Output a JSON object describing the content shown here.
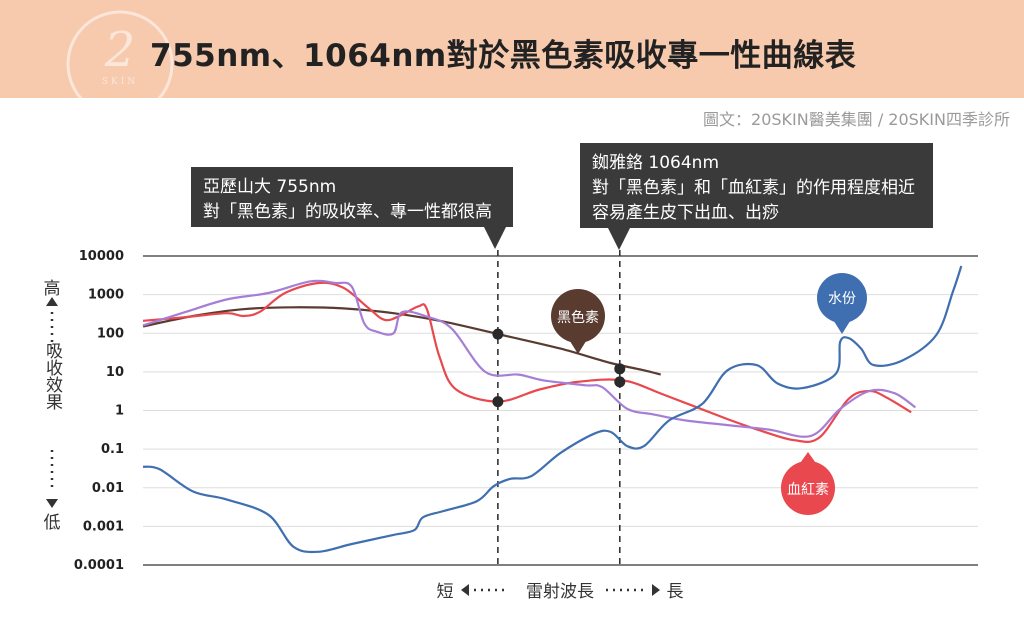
{
  "title": "755nm、1064nm對於黑色素吸收專一性曲線表",
  "logo": {
    "text": "2",
    "sub": "SKIN"
  },
  "credit": "圖文：20SKIN醫美集團 / 20SKIN四季診所",
  "callouts": {
    "alexandrite": {
      "line1": "亞歷山大 755nm",
      "line2": "對「黑色素」的吸收率、專一性都很高"
    },
    "ndyag": {
      "line1": "銣雅鉻 1064nm",
      "line2": "對「黑色素」和「血紅素」的作用程度相近",
      "line3": "容易產生皮下出血、出痧"
    }
  },
  "colors": {
    "melanin": "#5a3b30",
    "hemoglobin": "#e8484e",
    "water": "#3f6fb0",
    "unlabeled": "#a67ed6",
    "callout": "#3a3a3a",
    "header": "#f7c9ad"
  },
  "chart_data": {
    "type": "line",
    "y_scale": "log",
    "ylim": [
      0.0001,
      10000
    ],
    "yticks": [
      "10000",
      "1000",
      "100",
      "10",
      "1",
      "0.1",
      "0.01",
      "0.001",
      "0.0001"
    ],
    "ylabel": {
      "high": "高",
      "text": "吸收效果",
      "low": "低"
    },
    "xlabel": {
      "short": "短",
      "text": "雷射波長",
      "long": "長"
    },
    "markers": [
      {
        "label": "755nm"
      },
      {
        "label": "1064nm"
      }
    ],
    "series": [
      {
        "name": "黑色素",
        "color": "#5a3b30",
        "points": [
          [
            0.0,
            150
          ],
          [
            0.06,
            280
          ],
          [
            0.12,
            420
          ],
          [
            0.18,
            470
          ],
          [
            0.24,
            440
          ],
          [
            0.3,
            330
          ],
          [
            0.36,
            200
          ],
          [
            0.43,
            90
          ],
          [
            0.5,
            40
          ],
          [
            0.56,
            17
          ],
          [
            0.6,
            11
          ],
          [
            0.62,
            8.5
          ]
        ]
      },
      {
        "name": "血紅素",
        "color": "#e8484e",
        "points": [
          [
            0.0,
            210
          ],
          [
            0.05,
            260
          ],
          [
            0.1,
            330
          ],
          [
            0.12,
            280
          ],
          [
            0.14,
            360
          ],
          [
            0.17,
            1100
          ],
          [
            0.21,
            2000
          ],
          [
            0.24,
            1500
          ],
          [
            0.27,
            450
          ],
          [
            0.29,
            220
          ],
          [
            0.31,
            300
          ],
          [
            0.33,
            500
          ],
          [
            0.34,
            420
          ],
          [
            0.355,
            25
          ],
          [
            0.375,
            3.5
          ],
          [
            0.425,
            1.7
          ],
          [
            0.475,
            3.5
          ],
          [
            0.52,
            5.5
          ],
          [
            0.575,
            6
          ],
          [
            0.625,
            2.5
          ],
          [
            0.7,
            0.6
          ],
          [
            0.74,
            0.3
          ],
          [
            0.78,
            0.17
          ],
          [
            0.81,
            0.2
          ],
          [
            0.845,
            2.0
          ],
          [
            0.87,
            3.2
          ],
          [
            0.89,
            2.2
          ],
          [
            0.92,
            0.9
          ]
        ]
      },
      {
        "name": "unlabeled",
        "color": "#a67ed6",
        "points": [
          [
            0.0,
            160
          ],
          [
            0.05,
            350
          ],
          [
            0.1,
            750
          ],
          [
            0.15,
            1100
          ],
          [
            0.2,
            2200
          ],
          [
            0.23,
            2000
          ],
          [
            0.25,
            1600
          ],
          [
            0.265,
            180
          ],
          [
            0.28,
            110
          ],
          [
            0.3,
            100
          ],
          [
            0.31,
            350
          ],
          [
            0.34,
            270
          ],
          [
            0.37,
            130
          ],
          [
            0.41,
            10
          ],
          [
            0.45,
            8.5
          ],
          [
            0.48,
            6
          ],
          [
            0.53,
            4.5
          ],
          [
            0.55,
            4
          ],
          [
            0.58,
            1.1
          ],
          [
            0.61,
            0.8
          ],
          [
            0.65,
            0.55
          ],
          [
            0.7,
            0.42
          ],
          [
            0.75,
            0.32
          ],
          [
            0.8,
            0.22
          ],
          [
            0.835,
            1.1
          ],
          [
            0.87,
            3.2
          ],
          [
            0.9,
            2.8
          ],
          [
            0.925,
            1.2
          ]
        ]
      },
      {
        "name": "水份",
        "color": "#3f6fb0",
        "points": [
          [
            0.0,
            0.035
          ],
          [
            0.02,
            0.03
          ],
          [
            0.06,
            0.008
          ],
          [
            0.1,
            0.005
          ],
          [
            0.15,
            0.002
          ],
          [
            0.18,
            0.0003
          ],
          [
            0.21,
            0.00022
          ],
          [
            0.25,
            0.00035
          ],
          [
            0.3,
            0.0006
          ],
          [
            0.325,
            0.0008
          ],
          [
            0.335,
            0.0017
          ],
          [
            0.36,
            0.0025
          ],
          [
            0.4,
            0.0045
          ],
          [
            0.42,
            0.011
          ],
          [
            0.44,
            0.017
          ],
          [
            0.465,
            0.02
          ],
          [
            0.5,
            0.08
          ],
          [
            0.54,
            0.25
          ],
          [
            0.56,
            0.28
          ],
          [
            0.58,
            0.12
          ],
          [
            0.6,
            0.12
          ],
          [
            0.63,
            0.55
          ],
          [
            0.67,
            1.5
          ],
          [
            0.7,
            11
          ],
          [
            0.735,
            15
          ],
          [
            0.76,
            5
          ],
          [
            0.79,
            3.8
          ],
          [
            0.83,
            9
          ],
          [
            0.835,
            60
          ],
          [
            0.845,
            75
          ],
          [
            0.86,
            40
          ],
          [
            0.875,
            15
          ],
          [
            0.91,
            20
          ],
          [
            0.95,
            90
          ],
          [
            0.97,
            1200
          ],
          [
            0.98,
            5500
          ]
        ]
      }
    ]
  }
}
